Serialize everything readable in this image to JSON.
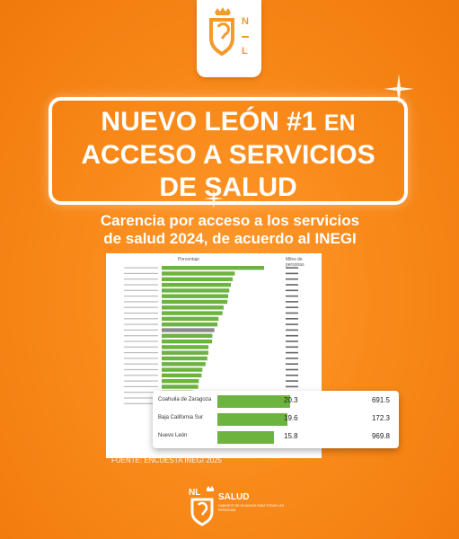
{
  "logo": {
    "letters": "N L"
  },
  "headline": {
    "line1": "NUEVO LEÓN #1",
    "line1_suffix": "EN",
    "line2": "ACCESO A SERVICIOS",
    "line3": "DE SALUD"
  },
  "subtitle": {
    "line1": "Carencia por acceso a los servicios",
    "line2": "de salud 2024, de acuerdo al INEGI"
  },
  "sheet": {
    "header_pct": "Porcentaje",
    "header_miles": "Miles de personas"
  },
  "chart_data": {
    "type": "bar",
    "title": "",
    "xlabel": "Porcentaje",
    "ylabel": "",
    "highlighted": {
      "categories": [
        "Coahuila de Zaragoza",
        "Baja California Sur",
        "Nuevo León"
      ],
      "values": [
        20.3,
        19.6,
        15.8
      ],
      "miles": [
        691.5,
        172.3,
        969.8
      ]
    },
    "background_values": [
      66.5,
      47.5,
      46.1,
      44.9,
      43.9,
      43.2,
      42.7,
      40.2,
      39.5,
      36.9,
      36.2,
      34.2,
      32.9,
      32.7,
      30.4,
      30.3,
      29.6,
      28.5,
      26.4,
      25.9,
      24.1,
      23.7,
      20.3,
      19.6,
      15.8
    ]
  },
  "source": "FUENTE: ENCUESTA INEGI 2025",
  "footer": {
    "brand": "NL",
    "dept": "SALUD",
    "tagline": "GABINETE DE IGUALDAD PARA TODAS LAS PERSONAS"
  },
  "colors": {
    "orange": "#f98a1a",
    "bar": "#6cb33f",
    "white": "#ffffff"
  }
}
